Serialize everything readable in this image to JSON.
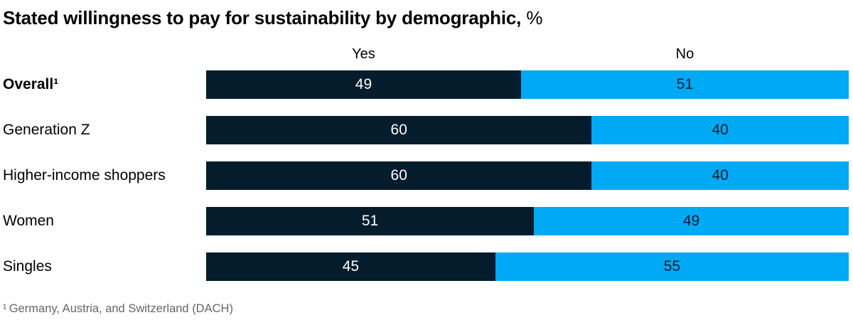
{
  "title": {
    "main": "Stated willingness to pay for sustainability by demographic,",
    "unit": " %"
  },
  "colors": {
    "yes_segment": "#051C2C",
    "no_segment": "#00A9F4",
    "value_on_yes": "#FFFFFF",
    "value_on_no": "#051C2C",
    "footnote_text": "#666666"
  },
  "chart_data": {
    "type": "bar",
    "subtype": "horizontal-stacked-100pct",
    "title": "Stated willingness to pay for sustainability by demographic, %",
    "categories": [
      "Overall¹",
      "Generation Z",
      "Higher-income shoppers",
      "Women",
      "Singles"
    ],
    "category_bold": [
      true,
      false,
      false,
      false,
      false
    ],
    "series": [
      {
        "name": "Yes",
        "values": [
          49,
          60,
          60,
          51,
          45
        ]
      },
      {
        "name": "No",
        "values": [
          51,
          40,
          40,
          49,
          55
        ]
      }
    ],
    "xlim": [
      0,
      100
    ],
    "value_labels_shown": true,
    "legend_position": "column-headers-above-first-row",
    "grid": false
  },
  "footnote": {
    "text": "¹ Germany, Austria, and Switzerland (DACH)"
  }
}
